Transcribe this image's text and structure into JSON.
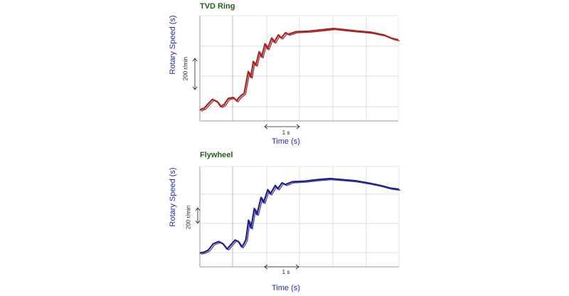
{
  "chart_data": [
    {
      "type": "line",
      "title": "TVD Ring",
      "xlabel": "Time (s)",
      "ylabel": "Rotary Speed (s)",
      "scale_bars": {
        "x": "1 s",
        "y": "200 r/min"
      },
      "grid": true,
      "colors": {
        "measured": "#c21818",
        "simulated": "#5a5a5a"
      },
      "series": [
        {
          "values": [
            [
              0.0,
              0.0
            ],
            [
              0.05,
              8
            ],
            [
              0.1,
              10
            ],
            [
              0.18,
              30
            ],
            [
              0.3,
              58
            ],
            [
              0.42,
              45
            ],
            [
              0.5,
              20
            ],
            [
              0.58,
              30
            ],
            [
              0.68,
              62
            ],
            [
              0.8,
              68
            ],
            [
              0.88,
              50
            ],
            [
              0.94,
              68
            ],
            [
              1.0,
              80
            ],
            [
              1.06,
              90
            ],
            [
              1.12,
              160
            ],
            [
              1.16,
              205
            ],
            [
              1.22,
              175
            ],
            [
              1.28,
              258
            ],
            [
              1.34,
              238
            ],
            [
              1.42,
              310
            ],
            [
              1.48,
              282
            ],
            [
              1.56,
              352
            ],
            [
              1.62,
              325
            ],
            [
              1.72,
              382
            ],
            [
              1.78,
              360
            ],
            [
              1.88,
              398
            ],
            [
              1.95,
              382
            ],
            [
              2.05,
              410
            ],
            [
              2.12,
              402
            ],
            [
              2.3,
              415
            ],
            [
              2.6,
              418
            ],
            [
              2.9,
              425
            ],
            [
              3.2,
              432
            ],
            [
              3.5,
              425
            ],
            [
              3.8,
              418
            ],
            [
              4.1,
              412
            ],
            [
              4.4,
              398
            ],
            [
              4.6,
              380
            ],
            [
              4.75,
              372
            ]
          ]
        }
      ]
    },
    {
      "type": "line",
      "title": "Flywheel",
      "xlabel": "Time (s)",
      "ylabel": "Rotary Speed (s)",
      "scale_bars": {
        "x": "1 s",
        "y": "200 r/min"
      },
      "grid": true,
      "colors": {
        "measured": "#1c1ca6",
        "simulated": "#5a5a5a"
      },
      "series": [
        {
          "values": [
            [
              0.0,
              0.0
            ],
            [
              0.05,
              4
            ],
            [
              0.1,
              5
            ],
            [
              0.2,
              15
            ],
            [
              0.32,
              45
            ],
            [
              0.45,
              55
            ],
            [
              0.55,
              45
            ],
            [
              0.65,
              20
            ],
            [
              0.74,
              40
            ],
            [
              0.84,
              62
            ],
            [
              0.92,
              55
            ],
            [
              1.0,
              30
            ],
            [
              1.05,
              45
            ],
            [
              1.1,
              65
            ],
            [
              1.16,
              155
            ],
            [
              1.22,
              118
            ],
            [
              1.3,
              210
            ],
            [
              1.36,
              182
            ],
            [
              1.46,
              262
            ],
            [
              1.52,
              238
            ],
            [
              1.62,
              298
            ],
            [
              1.68,
              278
            ],
            [
              1.8,
              318
            ],
            [
              1.86,
              302
            ],
            [
              1.96,
              330
            ],
            [
              2.04,
              322
            ],
            [
              2.2,
              335
            ],
            [
              2.5,
              338
            ],
            [
              2.8,
              345
            ],
            [
              3.1,
              350
            ],
            [
              3.4,
              345
            ],
            [
              3.7,
              340
            ],
            [
              4.0,
              330
            ],
            [
              4.3,
              318
            ],
            [
              4.55,
              305
            ],
            [
              4.75,
              300
            ]
          ]
        }
      ]
    }
  ]
}
